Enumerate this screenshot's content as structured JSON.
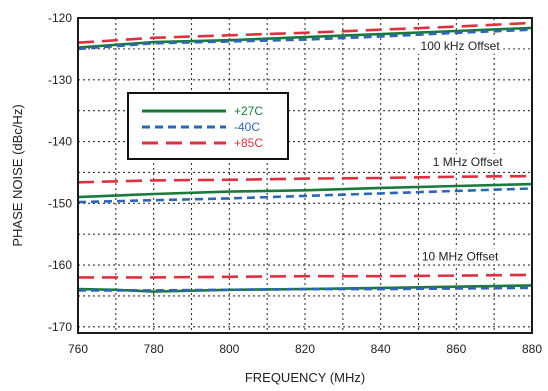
{
  "chart_data": {
    "type": "line",
    "xlabel": "FREQUENCY (MHz)",
    "ylabel": "PHASE NOISE (dBc/Hz)",
    "xlim": [
      760,
      880
    ],
    "ylim": [
      -171,
      -120
    ],
    "x_ticks": [
      760,
      780,
      800,
      820,
      840,
      860,
      880
    ],
    "y_ticks": [
      -120,
      -130,
      -140,
      -150,
      -160,
      -170
    ],
    "grid": "dotted",
    "legend_position": "upper-left",
    "legend": [
      {
        "label": "+27C",
        "color": "#1a7a3c",
        "dash": "solid"
      },
      {
        "label": "-40C",
        "color": "#2f66b3",
        "dash": "dashed"
      },
      {
        "label": "+85C",
        "color": "#e03040",
        "dash": "long-dash"
      }
    ],
    "annotations": [
      {
        "text": "100 kHz Offset",
        "x": 861,
        "y": -124.5
      },
      {
        "text": "1 MHz Offset",
        "x": 863,
        "y": -143.3
      },
      {
        "text": "10 MHz Offset",
        "x": 861,
        "y": -158.6
      }
    ],
    "series": [
      {
        "name": "+27C",
        "group": "100 kHz Offset",
        "color": "#1a7a3c",
        "dash": "solid",
        "x": [
          760,
          780,
          800,
          820,
          840,
          860,
          880
        ],
        "y": [
          -124.8,
          -123.9,
          -123.6,
          -123.1,
          -122.6,
          -122.1,
          -121.6
        ]
      },
      {
        "name": "-40C",
        "group": "100 kHz Offset",
        "color": "#2f66b3",
        "dash": "dashed",
        "x": [
          760,
          780,
          800,
          820,
          840,
          860,
          880
        ],
        "y": [
          -125.0,
          -124.1,
          -123.8,
          -123.5,
          -123.0,
          -122.4,
          -121.9
        ]
      },
      {
        "name": "+85C",
        "group": "100 kHz Offset",
        "color": "#e03040",
        "dash": "long-dash",
        "x": [
          760,
          780,
          800,
          820,
          840,
          860,
          880
        ],
        "y": [
          -124.0,
          -123.2,
          -122.8,
          -122.4,
          -121.9,
          -121.4,
          -120.8
        ]
      },
      {
        "name": "+27C",
        "group": "1 MHz Offset",
        "color": "#1a7a3c",
        "dash": "solid",
        "x": [
          760,
          780,
          800,
          820,
          840,
          860,
          880
        ],
        "y": [
          -149.0,
          -148.5,
          -148.1,
          -147.9,
          -147.5,
          -147.2,
          -146.9
        ]
      },
      {
        "name": "-40C",
        "group": "1 MHz Offset",
        "color": "#2f66b3",
        "dash": "dashed",
        "x": [
          760,
          780,
          800,
          820,
          840,
          860,
          880
        ],
        "y": [
          -149.8,
          -149.5,
          -149.2,
          -148.8,
          -148.4,
          -148.0,
          -147.6
        ]
      },
      {
        "name": "+85C",
        "group": "1 MHz Offset",
        "color": "#e03040",
        "dash": "long-dash",
        "x": [
          760,
          780,
          800,
          820,
          840,
          860,
          880
        ],
        "y": [
          -146.6,
          -146.3,
          -146.2,
          -146.0,
          -145.9,
          -145.7,
          -145.6
        ]
      },
      {
        "name": "+27C",
        "group": "10 MHz Offset",
        "color": "#1a7a3c",
        "dash": "solid",
        "x": [
          760,
          770,
          780,
          800,
          820,
          840,
          860,
          880
        ],
        "y": [
          -163.9,
          -164.0,
          -164.3,
          -164.0,
          -163.9,
          -163.7,
          -163.5,
          -163.3
        ]
      },
      {
        "name": "-40C",
        "group": "10 MHz Offset",
        "color": "#2f66b3",
        "dash": "dashed",
        "x": [
          760,
          780,
          800,
          820,
          840,
          860,
          880
        ],
        "y": [
          -164.1,
          -164.1,
          -164.0,
          -163.9,
          -163.9,
          -163.8,
          -163.7
        ]
      },
      {
        "name": "+85C",
        "group": "10 MHz Offset",
        "color": "#e03040",
        "dash": "long-dash",
        "x": [
          760,
          780,
          800,
          820,
          840,
          860,
          880
        ],
        "y": [
          -162.0,
          -162.0,
          -161.9,
          -161.8,
          -161.8,
          -161.7,
          -161.6
        ]
      }
    ]
  }
}
